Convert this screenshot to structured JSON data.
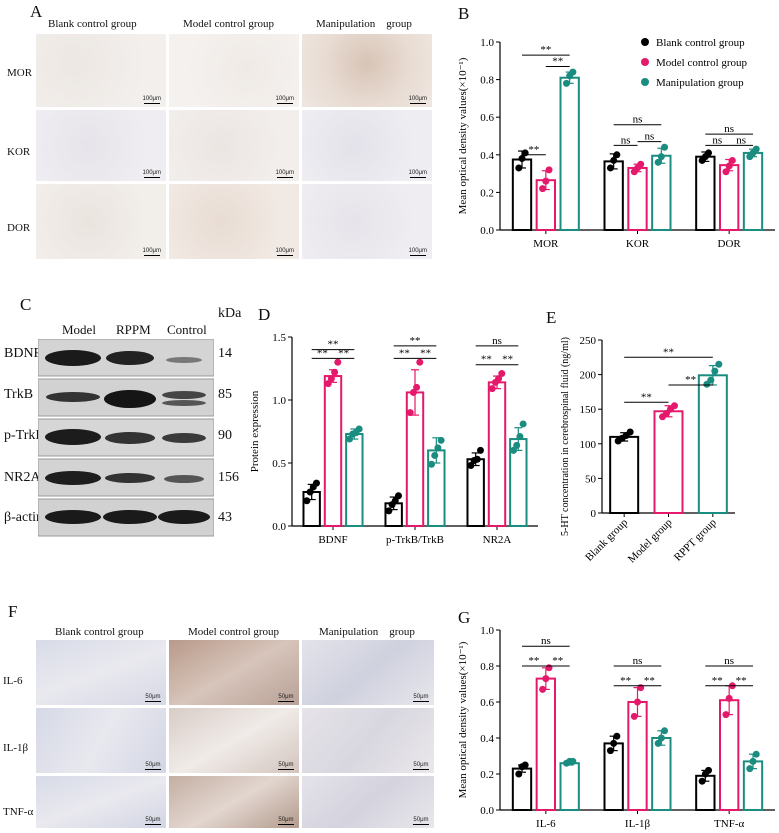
{
  "panels": {
    "A": "A",
    "B": "B",
    "C": "C",
    "D": "D",
    "E": "E",
    "F": "F",
    "G": "G"
  },
  "panelA": {
    "col_headers": [
      "Blank control group",
      "Model control group",
      "Manipulation    group"
    ],
    "row_labels": [
      "MOR",
      "KOR",
      "DOR"
    ],
    "scale_bar": "100μm"
  },
  "panelF": {
    "col_headers": [
      "Blank control group",
      "Model control group",
      "Manipulation    group"
    ],
    "row_labels": [
      "IL-6",
      "IL-1β",
      "TNF-α"
    ],
    "scale_bar": "50μm"
  },
  "panelC": {
    "col_headers": [
      "Model",
      "RPPM",
      "Control"
    ],
    "kda_header": "kDa",
    "rows": [
      {
        "protein": "BDNF",
        "kda": "14"
      },
      {
        "protein": "TrkB",
        "kda": "85"
      },
      {
        "protein": "p-TrkB",
        "kda": "90"
      },
      {
        "protein": "NR2A",
        "kda": "156"
      },
      {
        "protein": "β-actin",
        "kda": "43"
      }
    ]
  },
  "colors": {
    "blank": "#000000",
    "model": "#e5196b",
    "manip": "#1a8c80"
  },
  "chart_data": [
    {
      "id": "B",
      "type": "bar",
      "ylabel": "Mean optical density values(×10⁻¹)",
      "ylim": [
        0,
        1.0
      ],
      "yticks": [
        "0.0",
        "0.2",
        "0.4",
        "0.6",
        "0.8",
        "1.0"
      ],
      "categories": [
        "MOR",
        "KOR",
        "DOR"
      ],
      "legend_position": "top-right",
      "series": [
        {
          "name": "Blank control group",
          "values": [
            0.375,
            0.365,
            0.39
          ],
          "err": [
            0.045,
            0.04,
            0.025
          ],
          "points": [
            [
              0.33,
              0.38,
              0.41
            ],
            [
              0.33,
              0.37,
              0.4
            ],
            [
              0.37,
              0.39,
              0.41
            ]
          ]
        },
        {
          "name": "Model control group",
          "values": [
            0.265,
            0.33,
            0.345
          ],
          "err": [
            0.05,
            0.02,
            0.03
          ],
          "points": [
            [
              0.22,
              0.26,
              0.32
            ],
            [
              0.31,
              0.33,
              0.35
            ],
            [
              0.31,
              0.34,
              0.37
            ]
          ]
        },
        {
          "name": "Manipulation  group",
          "values": [
            0.81,
            0.395,
            0.41
          ],
          "err": [
            0.03,
            0.04,
            0.02
          ],
          "points": [
            [
              0.78,
              0.82,
              0.84
            ],
            [
              0.36,
              0.39,
              0.44
            ],
            [
              0.39,
              0.41,
              0.43
            ]
          ]
        }
      ],
      "annotations": [
        {
          "cat": 0,
          "pair": [
            0,
            1
          ],
          "level": 0.4,
          "text": "**"
        },
        {
          "cat": 0,
          "pair": [
            1,
            2
          ],
          "level": 0.87,
          "text": "**"
        },
        {
          "cat": 0,
          "pair": [
            0,
            2
          ],
          "level": 0.93,
          "text": "**"
        },
        {
          "cat": 1,
          "pair": [
            0,
            1
          ],
          "level": 0.45,
          "text": "ns"
        },
        {
          "cat": 1,
          "pair": [
            1,
            2
          ],
          "level": 0.47,
          "text": "ns"
        },
        {
          "cat": 1,
          "pair": [
            0,
            2
          ],
          "level": 0.56,
          "text": "ns"
        },
        {
          "cat": 2,
          "pair": [
            0,
            1
          ],
          "level": 0.45,
          "text": "ns"
        },
        {
          "cat": 2,
          "pair": [
            1,
            2
          ],
          "level": 0.45,
          "text": "ns"
        },
        {
          "cat": 2,
          "pair": [
            0,
            2
          ],
          "level": 0.51,
          "text": "ns"
        }
      ]
    },
    {
      "id": "D",
      "type": "bar",
      "ylabel": "Protein expression",
      "ylim": [
        0,
        1.5
      ],
      "yticks": [
        "0.0",
        "0.5",
        "1.0",
        "1.5"
      ],
      "categories": [
        "BDNF",
        "p-TrkB/TrkB",
        "NR2A"
      ],
      "series": [
        {
          "name": "",
          "values": [
            0.27,
            0.18,
            0.53
          ],
          "err": [
            0.06,
            0.05,
            0.05
          ],
          "points": [
            [
              0.2,
              0.27,
              0.31,
              0.34
            ],
            [
              0.12,
              0.17,
              0.2,
              0.24
            ],
            [
              0.48,
              0.52,
              0.53,
              0.6
            ]
          ]
        },
        {
          "name": "",
          "values": [
            1.19,
            1.06,
            1.14
          ],
          "err": [
            0.05,
            0.18,
            0.05
          ],
          "points": [
            [
              1.13,
              1.17,
              1.22,
              1.3
            ],
            [
              0.9,
              1.06,
              1.1,
              1.3
            ],
            [
              1.09,
              1.14,
              1.17,
              1.21
            ]
          ]
        },
        {
          "name": "",
          "values": [
            0.73,
            0.6,
            0.69
          ],
          "err": [
            0.04,
            0.1,
            0.09
          ],
          "points": [
            [
              0.69,
              0.73,
              0.74,
              0.77
            ],
            [
              0.49,
              0.56,
              0.62,
              0.68
            ],
            [
              0.6,
              0.64,
              0.71,
              0.81
            ]
          ]
        }
      ],
      "annotations": [
        {
          "cat": 0,
          "pair": [
            0,
            1
          ],
          "level": 1.33,
          "text": "**"
        },
        {
          "cat": 0,
          "pair": [
            1,
            2
          ],
          "level": 1.33,
          "text": "**"
        },
        {
          "cat": 0,
          "pair": [
            0,
            2
          ],
          "level": 1.4,
          "text": "**"
        },
        {
          "cat": 1,
          "pair": [
            0,
            1
          ],
          "level": 1.33,
          "text": "**"
        },
        {
          "cat": 1,
          "pair": [
            1,
            2
          ],
          "level": 1.33,
          "text": "**"
        },
        {
          "cat": 1,
          "pair": [
            0,
            2
          ],
          "level": 1.43,
          "text": "**"
        },
        {
          "cat": 2,
          "pair": [
            0,
            1
          ],
          "level": 1.28,
          "text": "**"
        },
        {
          "cat": 2,
          "pair": [
            1,
            2
          ],
          "level": 1.28,
          "text": "**"
        },
        {
          "cat": 2,
          "pair": [
            0,
            2
          ],
          "level": 1.43,
          "text": "ns"
        }
      ]
    },
    {
      "id": "E",
      "type": "bar",
      "ylabel": "5-HT concentration in cerebrospinal fluid (ng/ml)",
      "ylim": [
        0,
        250
      ],
      "yticks": [
        "0",
        "50",
        "100",
        "150",
        "200",
        "250"
      ],
      "categories": [
        "Blank  group",
        "Model  group",
        "RPPT  group"
      ],
      "values": [
        110,
        147,
        199
      ],
      "err": [
        6,
        8,
        14
      ],
      "points": [
        [
          104,
          108,
          112,
          117
        ],
        [
          139,
          144,
          150,
          155
        ],
        [
          186,
          192,
          205,
          215
        ]
      ],
      "annotations": [
        {
          "pair": [
            0,
            1
          ],
          "level": 160,
          "text": "**"
        },
        {
          "pair": [
            1,
            2
          ],
          "level": 185,
          "text": "**"
        },
        {
          "pair": [
            0,
            2
          ],
          "level": 225,
          "text": "**"
        }
      ]
    },
    {
      "id": "G",
      "type": "bar",
      "ylabel": "Mean optical density values(×10⁻¹)",
      "ylim": [
        0,
        1.0
      ],
      "yticks": [
        "0.0",
        "0.2",
        "0.4",
        "0.6",
        "0.8",
        "1.0"
      ],
      "categories": [
        "IL-6",
        "IL-1β",
        "TNF-α"
      ],
      "series": [
        {
          "name": "",
          "values": [
            0.23,
            0.37,
            0.19
          ],
          "err": [
            0.02,
            0.04,
            0.03
          ],
          "points": [
            [
              0.2,
              0.24,
              0.25
            ],
            [
              0.33,
              0.37,
              0.41
            ],
            [
              0.16,
              0.2,
              0.22
            ]
          ]
        },
        {
          "name": "",
          "values": [
            0.73,
            0.6,
            0.61
          ],
          "err": [
            0.06,
            0.08,
            0.08
          ],
          "points": [
            [
              0.67,
              0.73,
              0.79
            ],
            [
              0.52,
              0.6,
              0.68
            ],
            [
              0.53,
              0.62,
              0.69
            ]
          ]
        },
        {
          "name": "",
          "values": [
            0.26,
            0.4,
            0.27
          ],
          "err": [
            0.01,
            0.04,
            0.04
          ],
          "points": [
            [
              0.26,
              0.27,
              0.27
            ],
            [
              0.37,
              0.4,
              0.44
            ],
            [
              0.23,
              0.27,
              0.31
            ]
          ]
        }
      ],
      "annotations": [
        {
          "cat": 0,
          "pair": [
            0,
            1
          ],
          "level": 0.8,
          "text": "**"
        },
        {
          "cat": 0,
          "pair": [
            1,
            2
          ],
          "level": 0.8,
          "text": "**"
        },
        {
          "cat": 0,
          "pair": [
            0,
            2
          ],
          "level": 0.91,
          "text": "ns"
        },
        {
          "cat": 1,
          "pair": [
            0,
            1
          ],
          "level": 0.69,
          "text": "**"
        },
        {
          "cat": 1,
          "pair": [
            1,
            2
          ],
          "level": 0.69,
          "text": "**"
        },
        {
          "cat": 1,
          "pair": [
            0,
            2
          ],
          "level": 0.8,
          "text": "ns"
        },
        {
          "cat": 2,
          "pair": [
            0,
            1
          ],
          "level": 0.69,
          "text": "**"
        },
        {
          "cat": 2,
          "pair": [
            1,
            2
          ],
          "level": 0.69,
          "text": "**"
        },
        {
          "cat": 2,
          "pair": [
            0,
            2
          ],
          "level": 0.8,
          "text": "ns"
        }
      ]
    }
  ]
}
